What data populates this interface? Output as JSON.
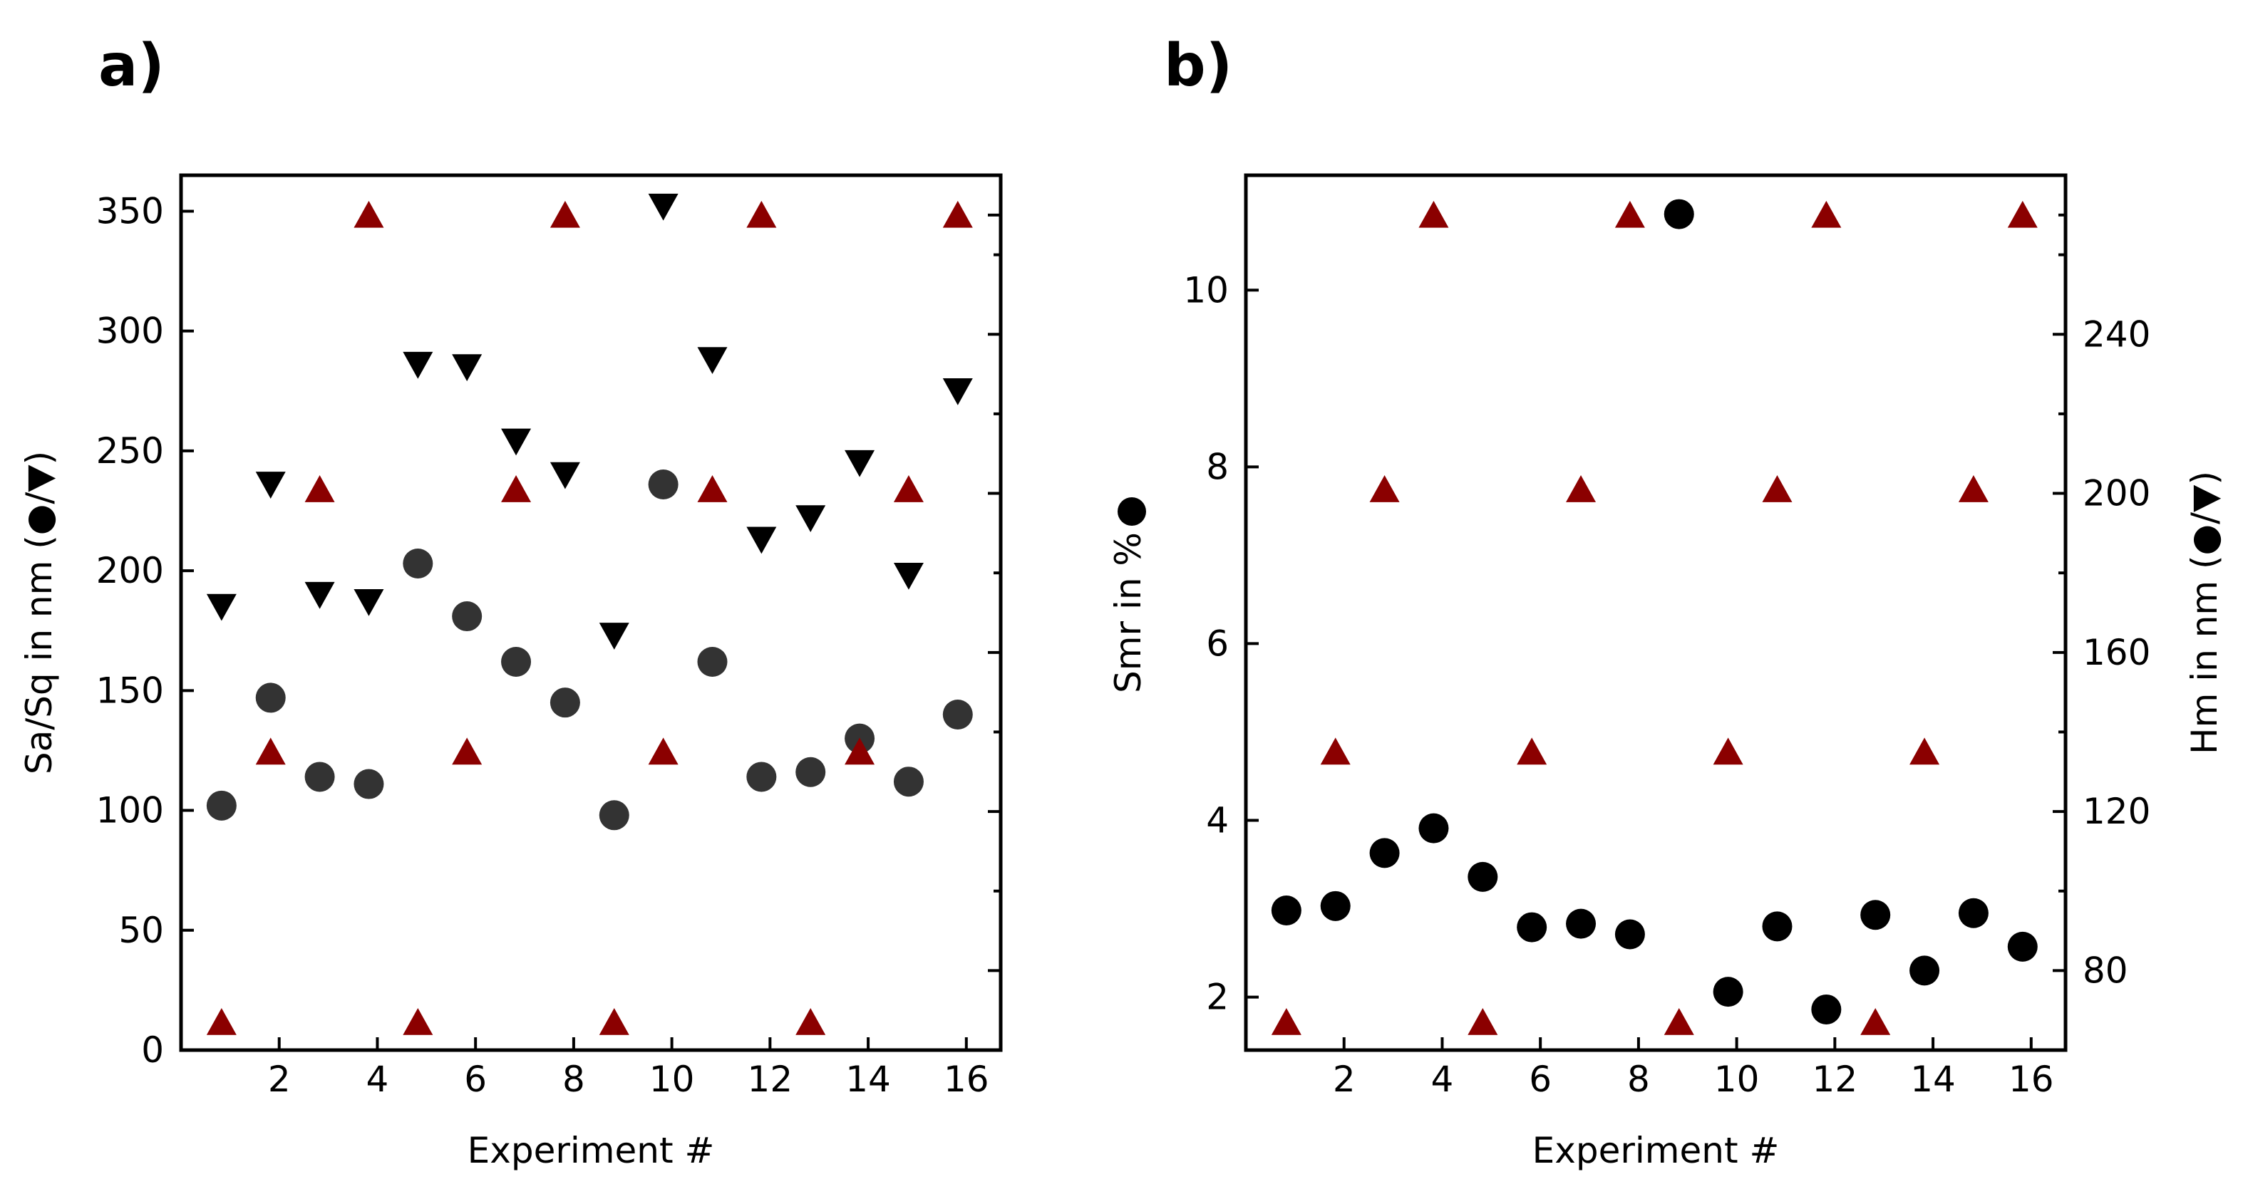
{
  "colors": {
    "black": "#000000",
    "dark_gray": "#333333",
    "dark_red": "#8b0000"
  },
  "chart_data": [
    {
      "panel": "a)",
      "type": "scatter",
      "xlabel": "Experiment #",
      "ylabel": "Sa/Sq in nm (●/▼)",
      "xlim": [
        0,
        16.7
      ],
      "ylim": [
        0,
        365
      ],
      "xticks": [
        2,
        4,
        6,
        8,
        10,
        12,
        14,
        16
      ],
      "yticks": [
        0,
        50,
        100,
        150,
        200,
        250,
        300,
        350
      ],
      "ytick_labels": [
        "0",
        "50",
        "100",
        "150",
        "200",
        "250",
        "300",
        "350"
      ],
      "right_axis": {
        "ylim": [
          60,
          280
        ],
        "ticks": [
          80,
          120,
          160,
          200,
          240,
          270
        ],
        "minor_ticks": [
          100,
          140,
          180,
          220,
          260
        ],
        "labeled": false
      },
      "series": [
        {
          "name": "Sa",
          "marker": "circle",
          "color": "#333333",
          "x": [
            1,
            2,
            3,
            4,
            5,
            6,
            7,
            8,
            9,
            10,
            11,
            12,
            13,
            14,
            15,
            16
          ],
          "y": [
            102,
            147,
            114,
            111,
            203,
            181,
            162,
            145,
            98,
            236,
            162,
            114,
            116,
            130,
            112,
            140
          ]
        },
        {
          "name": "Sq",
          "marker": "triangle-down",
          "color": "#000000",
          "x": [
            1,
            2,
            3,
            4,
            5,
            6,
            7,
            8,
            9,
            10,
            11,
            12,
            13,
            14,
            15,
            16
          ],
          "y": [
            185,
            236,
            190,
            187,
            286,
            285,
            254,
            240,
            173,
            352,
            288,
            213,
            222,
            245,
            198,
            275
          ]
        },
        {
          "name": "Hm",
          "marker": "triangle-up",
          "color": "#8b0000",
          "axis": "right",
          "x": [
            1,
            2,
            3,
            4,
            5,
            6,
            7,
            8,
            9,
            10,
            11,
            12,
            13,
            14,
            15,
            16
          ],
          "y": [
            67,
            135,
            201,
            270,
            67,
            135,
            201,
            270,
            67,
            135,
            201,
            270,
            67,
            135,
            201,
            270
          ]
        }
      ]
    },
    {
      "panel": "b)",
      "type": "scatter",
      "xlabel": "Experiment #",
      "ylabel": "Smr in %",
      "ylabel2": "Hm in nm (●/▼)",
      "xlim": [
        0,
        16.7
      ],
      "ylim": [
        1.4,
        11.3
      ],
      "xticks": [
        2,
        4,
        6,
        8,
        10,
        12,
        14,
        16
      ],
      "yticks": [
        2,
        4,
        6,
        8,
        10
      ],
      "ytick_labels": [
        "2",
        "4",
        "6",
        "8",
        "10"
      ],
      "y2lim": [
        60,
        280
      ],
      "y2ticks": [
        80,
        120,
        160,
        200,
        240
      ],
      "y2tick_labels": [
        "80",
        "120",
        "160",
        "200",
        "240"
      ],
      "y2minor": [
        100,
        140,
        180,
        220,
        260,
        270
      ],
      "series": [
        {
          "name": "Smr",
          "marker": "circle",
          "color": "#000000",
          "x": [
            1,
            2,
            3,
            4,
            5,
            6,
            7,
            8,
            9,
            10,
            11,
            12,
            13,
            14,
            15,
            16
          ],
          "y": [
            2.98,
            3.03,
            3.63,
            3.91,
            3.36,
            2.79,
            2.83,
            2.71,
            10.86,
            2.06,
            2.8,
            1.86,
            2.93,
            2.3,
            2.95,
            2.57
          ]
        },
        {
          "name": "Hm",
          "marker": "triangle-up",
          "color": "#8b0000",
          "axis": "right",
          "x": [
            1,
            2,
            3,
            4,
            5,
            6,
            7,
            8,
            9,
            10,
            11,
            12,
            13,
            14,
            15,
            16
          ],
          "y": [
            67,
            135,
            201,
            270,
            67,
            135,
            201,
            270,
            67,
            135,
            201,
            270,
            67,
            135,
            201,
            270
          ]
        }
      ]
    }
  ]
}
